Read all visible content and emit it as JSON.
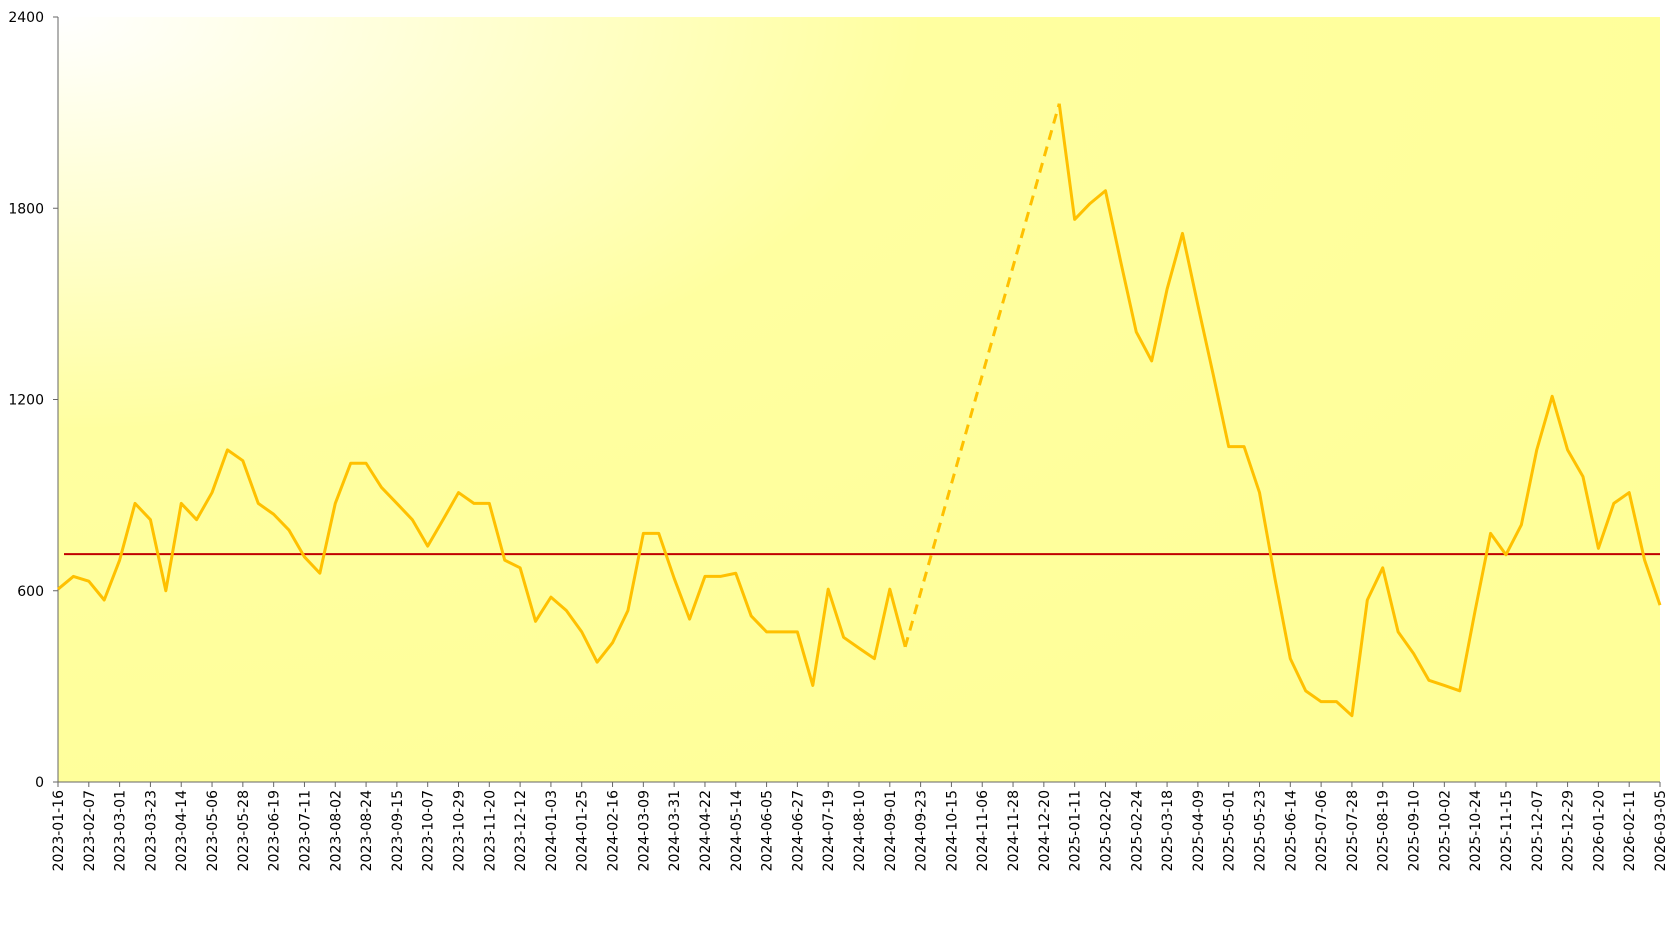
{
  "chart_data": {
    "type": "line",
    "x": [
      "2023-01-16",
      "2023-01-27",
      "2023-02-07",
      "2023-02-18",
      "2023-03-01",
      "2023-03-12",
      "2023-03-23",
      "2023-04-03",
      "2023-04-14",
      "2023-04-25",
      "2023-05-06",
      "2023-05-17",
      "2023-05-28",
      "2023-06-08",
      "2023-06-19",
      "2023-06-30",
      "2023-07-11",
      "2023-07-22",
      "2023-08-02",
      "2023-08-13",
      "2023-08-24",
      "2023-09-04",
      "2023-09-15",
      "2023-09-26",
      "2023-10-07",
      "2023-10-18",
      "2023-10-29",
      "2023-11-09",
      "2023-11-20",
      "2023-12-01",
      "2023-12-12",
      "2023-12-23",
      "2024-01-03",
      "2024-01-14",
      "2024-01-25",
      "2024-02-05",
      "2024-02-16",
      "2024-02-27",
      "2024-03-09",
      "2024-03-20",
      "2024-03-31",
      "2024-04-11",
      "2024-04-22",
      "2024-05-03",
      "2024-05-14",
      "2024-05-25",
      "2024-06-05",
      "2024-06-16",
      "2024-06-27",
      "2024-07-08",
      "2024-07-19",
      "2024-07-30",
      "2024-08-10",
      "2024-08-21",
      "2024-09-01",
      "2024-09-12",
      "2024-11-06",
      "2024-12-31",
      "2025-01-11",
      "2025-01-22",
      "2025-02-02",
      "2025-02-13",
      "2025-02-24",
      "2025-03-07",
      "2025-03-18",
      "2025-03-29",
      "2025-04-09",
      "2025-04-20",
      "2025-05-01",
      "2025-05-12",
      "2025-05-23",
      "2025-06-03",
      "2025-06-14",
      "2025-06-25",
      "2025-07-06",
      "2025-07-17",
      "2025-07-28",
      "2025-08-08",
      "2025-08-19",
      "2025-08-30",
      "2025-09-10",
      "2025-09-21",
      "2025-10-02",
      "2025-10-13",
      "2025-10-24",
      "2025-11-04",
      "2025-11-15",
      "2025-11-26",
      "2025-12-07",
      "2025-12-18",
      "2025-12-29",
      "2026-01-09",
      "2026-01-20",
      "2026-01-31",
      "2026-02-11",
      "2026-02-22",
      "2026-03-05"
    ],
    "series": [
      {
        "color": "#ffc000",
        "values": [
          605,
          645,
          630,
          571,
          696,
          874,
          823,
          600,
          874,
          823,
          908,
          1042,
          1008,
          874,
          840,
          790,
          706,
          655,
          874,
          1000,
          1000,
          924,
          874,
          823,
          740,
          823,
          908,
          874,
          874,
          696,
          672,
          504,
          580,
          538,
          471,
          376,
          437,
          538,
          780,
          780,
          639,
          511,
          645,
          645,
          655,
          521,
          471,
          471,
          471,
          303,
          605,
          454,
          420,
          387,
          605,
          424,
          null,
          2128,
          1765,
          1815,
          1855,
          1630,
          1412,
          1321,
          1546,
          1721,
          1496,
          1277,
          1052,
          1052,
          908,
          639,
          387,
          286,
          252,
          252,
          208,
          571,
          672,
          471,
          403,
          319,
          303,
          286,
          538,
          780,
          713,
          807,
          1042,
          1210,
          1042,
          958,
          733,
          874,
          908,
          696,
          555
        ]
      }
    ],
    "gap_style": "dashed",
    "reference_lines": [
      {
        "value": 715,
        "color": "#c00000"
      }
    ],
    "xlim": [
      "2023-01-16",
      "2026-03-05"
    ],
    "xticks": [
      "2023-01-16",
      "2023-02-07",
      "2023-03-01",
      "2023-03-23",
      "2023-04-14",
      "2023-05-06",
      "2023-05-28",
      "2023-06-19",
      "2023-07-11",
      "2023-08-02",
      "2023-08-24",
      "2023-09-15",
      "2023-10-07",
      "2023-10-29",
      "2023-11-20",
      "2023-12-12",
      "2024-01-03",
      "2024-01-25",
      "2024-02-16",
      "2024-03-09",
      "2024-03-31",
      "2024-04-22",
      "2024-05-14",
      "2024-06-05",
      "2024-06-27",
      "2024-07-19",
      "2024-08-10",
      "2024-09-01",
      "2024-09-23",
      "2024-10-15",
      "2024-11-06",
      "2024-11-28",
      "2024-12-20",
      "2025-01-11",
      "2025-02-02",
      "2025-02-24",
      "2025-03-18",
      "2025-04-09",
      "2025-05-01",
      "2025-05-23",
      "2025-06-14",
      "2025-07-06",
      "2025-07-28",
      "2025-08-19",
      "2025-09-10",
      "2025-10-02",
      "2025-10-24",
      "2025-11-15",
      "2025-12-07",
      "2025-12-29",
      "2026-01-20",
      "2026-02-11",
      "2026-03-05"
    ],
    "ylim": [
      0,
      2400
    ],
    "yticks": [
      0,
      600,
      1200,
      1800,
      2400
    ]
  }
}
